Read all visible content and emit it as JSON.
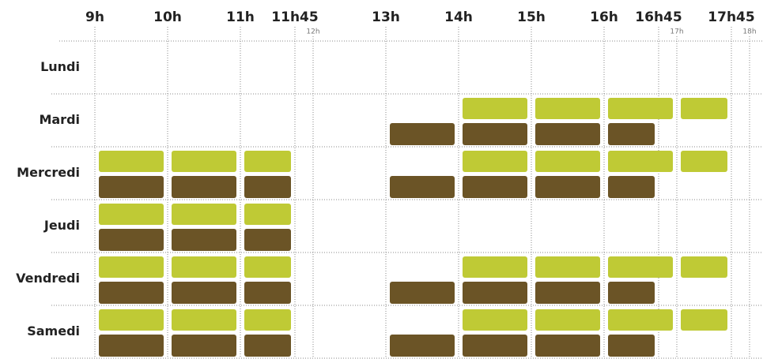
{
  "times": [
    {
      "value": 9,
      "label": "9h"
    },
    {
      "value": 10,
      "label": "10h"
    },
    {
      "value": 11,
      "label": "11h"
    },
    {
      "value": 11.75,
      "label": "11h45"
    },
    {
      "value": 13,
      "label": "13h"
    },
    {
      "value": 14,
      "label": "14h"
    },
    {
      "value": 15,
      "label": "15h"
    },
    {
      "value": 16,
      "label": "16h"
    },
    {
      "value": 16.75,
      "label": "16h45"
    },
    {
      "value": 17.75,
      "label": "17h45"
    }
  ],
  "minor_times": [
    {
      "value": 12,
      "label": "12h"
    },
    {
      "value": 17,
      "label": "17h"
    },
    {
      "value": 18,
      "label": "18h"
    }
  ],
  "colors": {
    "top": "#bfca35",
    "bottom": "#6b5426"
  },
  "rows": [
    {
      "day": "Lundi",
      "top": [],
      "bottom": []
    },
    {
      "day": "Mardi",
      "top": [
        [
          14,
          15
        ],
        [
          15,
          16
        ],
        [
          16,
          17
        ],
        [
          17,
          17.75
        ]
      ],
      "bottom": [
        [
          13,
          14
        ],
        [
          14,
          15
        ],
        [
          15,
          16
        ],
        [
          16,
          16.75
        ]
      ]
    },
    {
      "day": "Mercredi",
      "top": [
        [
          9,
          10
        ],
        [
          10,
          11
        ],
        [
          11,
          11.75
        ],
        [
          14,
          15
        ],
        [
          15,
          16
        ],
        [
          16,
          17
        ],
        [
          17,
          17.75
        ]
      ],
      "bottom": [
        [
          9,
          10
        ],
        [
          10,
          11
        ],
        [
          11,
          11.75
        ],
        [
          13,
          14
        ],
        [
          14,
          15
        ],
        [
          15,
          16
        ],
        [
          16,
          16.75
        ]
      ]
    },
    {
      "day": "Jeudi",
      "top": [
        [
          9,
          10
        ],
        [
          10,
          11
        ],
        [
          11,
          11.75
        ]
      ],
      "bottom": [
        [
          9,
          10
        ],
        [
          10,
          11
        ],
        [
          11,
          11.75
        ]
      ]
    },
    {
      "day": "Vendredi",
      "top": [
        [
          9,
          10
        ],
        [
          10,
          11
        ],
        [
          11,
          11.75
        ],
        [
          14,
          15
        ],
        [
          15,
          16
        ],
        [
          16,
          17
        ],
        [
          17,
          17.75
        ]
      ],
      "bottom": [
        [
          9,
          10
        ],
        [
          10,
          11
        ],
        [
          11,
          11.75
        ],
        [
          13,
          14
        ],
        [
          14,
          15
        ],
        [
          15,
          16
        ],
        [
          16,
          16.75
        ]
      ]
    },
    {
      "day": "Samedi",
      "top": [
        [
          9,
          10
        ],
        [
          10,
          11
        ],
        [
          11,
          11.75
        ],
        [
          14,
          15
        ],
        [
          15,
          16
        ],
        [
          16,
          17
        ],
        [
          17,
          17.75
        ]
      ],
      "bottom": [
        [
          9,
          10
        ],
        [
          10,
          11
        ],
        [
          11,
          11.75
        ],
        [
          13,
          14
        ],
        [
          14,
          15
        ],
        [
          15,
          16
        ],
        [
          16,
          16.75
        ]
      ]
    }
  ]
}
